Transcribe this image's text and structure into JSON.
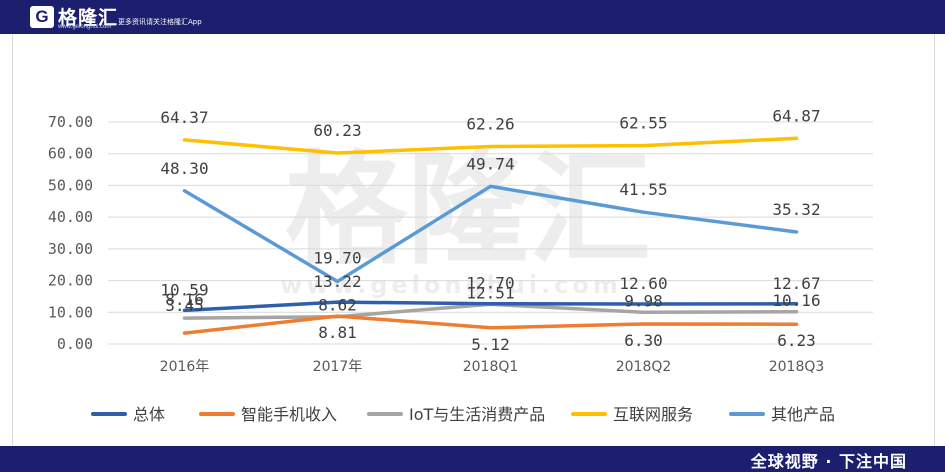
{
  "header": {
    "logo_letter": "G",
    "brand_name": "格隆汇",
    "brand_url": "www.gelonghui.com",
    "slogan": "更多资讯请关注格隆汇App"
  },
  "footer": {
    "slogan": "全球视野 · 下注中国"
  },
  "watermark": {
    "text": "格隆汇",
    "url": "www.gelonghui.com"
  },
  "chart_data": {
    "type": "line",
    "categories": [
      "2016年",
      "2017年",
      "2018Q1",
      "2018Q2",
      "2018Q3"
    ],
    "ylim": [
      0,
      70
    ],
    "yticks": [
      "0.00",
      "10.00",
      "20.00",
      "30.00",
      "40.00",
      "50.00",
      "60.00",
      "70.00"
    ],
    "grid": true,
    "legend_position": "bottom",
    "series": [
      {
        "name": "总体",
        "color": "#2e5faa",
        "values": [
          10.59,
          13.22,
          12.7,
          12.6,
          12.67
        ],
        "labels": [
          "10.59",
          "13.22",
          "12.70",
          "12.60",
          "12.67"
        ]
      },
      {
        "name": "智能手机收入",
        "color": "#ed7d31",
        "values": [
          3.45,
          8.81,
          5.12,
          6.3,
          6.23
        ],
        "labels": [
          "3.45",
          "8.81",
          "5.12",
          "6.30",
          "6.23"
        ]
      },
      {
        "name": "IoT与生活消费产品",
        "color": "#a5a5a5",
        "values": [
          8.16,
          8.62,
          12.51,
          9.98,
          10.16
        ],
        "labels": [
          "8.16",
          "8.62",
          "12.51",
          "9.98",
          "10.16"
        ]
      },
      {
        "name": "互联网服务",
        "color": "#ffc000",
        "values": [
          64.37,
          60.23,
          62.26,
          62.55,
          64.87
        ],
        "labels": [
          "64.37",
          "60.23",
          "62.26",
          "62.55",
          "64.87"
        ]
      },
      {
        "name": "其他产品",
        "color": "#5b9bd5",
        "values": [
          48.3,
          19.7,
          49.74,
          41.55,
          35.32
        ],
        "labels": [
          "48.30",
          "19.70",
          "49.74",
          "41.55",
          "35.32"
        ]
      }
    ]
  }
}
